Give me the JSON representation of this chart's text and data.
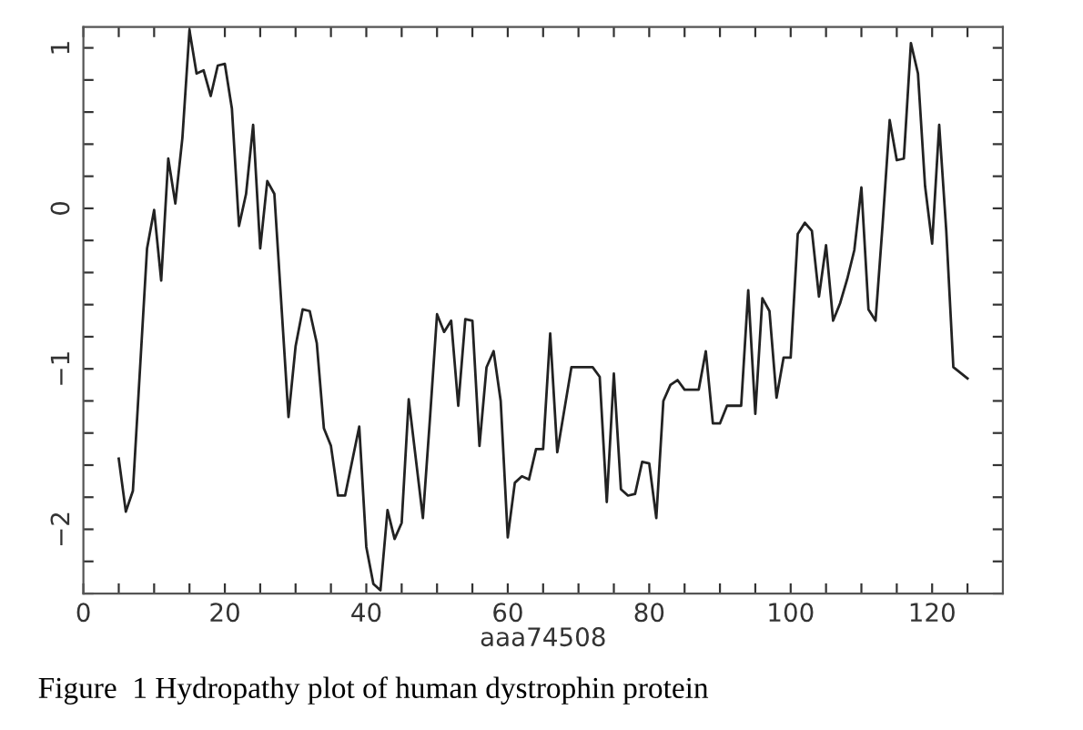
{
  "chart_data": {
    "type": "line",
    "xlabel": "aaa74508",
    "annotations": [
      "Figure  1 Hydropathy plot of human dystrophin protein"
    ],
    "x": [
      5,
      6,
      7,
      9,
      10,
      11,
      12,
      13,
      14,
      15,
      16,
      17,
      18,
      19,
      20,
      21,
      22,
      23,
      24,
      25,
      26,
      27,
      29,
      30,
      31,
      32,
      33,
      34,
      35,
      36,
      37,
      39,
      40,
      41,
      42,
      43,
      44,
      45,
      46,
      48,
      49,
      50,
      51,
      52,
      53,
      54,
      55,
      56,
      57,
      58,
      59,
      60,
      61,
      62,
      63,
      64,
      65,
      66,
      67,
      69,
      72,
      73,
      74,
      75,
      76,
      77,
      78,
      79,
      80,
      81,
      82,
      83,
      84,
      85,
      87,
      88,
      89,
      90,
      91,
      93,
      94,
      95,
      96,
      97,
      98,
      99,
      100,
      101,
      102,
      103,
      104,
      105,
      106,
      107,
      108,
      109,
      110,
      111,
      112,
      113,
      114,
      115,
      116,
      117,
      118,
      119,
      120,
      121,
      122,
      123,
      125
    ],
    "series": [
      {
        "color": "#222222",
        "values": [
          -1.56,
          -1.89,
          -1.76,
          -0.25,
          -0.01,
          -0.45,
          0.31,
          0.03,
          0.44,
          1.11,
          0.84,
          0.86,
          0.7,
          0.89,
          0.9,
          0.62,
          -0.11,
          0.09,
          0.52,
          -0.25,
          0.17,
          0.09,
          -1.3,
          -0.86,
          -0.63,
          -0.64,
          -0.84,
          -1.37,
          -1.48,
          -1.79,
          -1.79,
          -1.36,
          -2.11,
          -2.34,
          -2.38,
          -1.88,
          -2.06,
          -1.96,
          -1.19,
          -1.93,
          -1.31,
          -0.66,
          -0.77,
          -0.7,
          -1.23,
          -0.69,
          -0.7,
          -1.48,
          -0.99,
          -0.89,
          -1.2,
          -2.05,
          -1.71,
          -1.67,
          -1.69,
          -1.5,
          -1.5,
          -0.78,
          -1.52,
          -0.99,
          -0.99,
          -1.05,
          -1.83,
          -1.03,
          -1.75,
          -1.79,
          -1.78,
          -1.58,
          -1.59,
          -1.93,
          -1.2,
          -1.1,
          -1.07,
          -1.13,
          -1.13,
          -0.89,
          -1.34,
          -1.34,
          -1.23,
          -1.23,
          -0.51,
          -1.28,
          -0.56,
          -0.64,
          -1.18,
          -0.93,
          -0.93,
          -0.16,
          -0.09,
          -0.14,
          -0.55,
          -0.23,
          -0.7,
          -0.59,
          -0.44,
          -0.26,
          0.13,
          -0.63,
          -0.7,
          -0.1,
          0.55,
          0.3,
          0.31,
          1.03,
          0.84,
          0.14,
          -0.22,
          0.52,
          -0.14,
          -0.99,
          -1.06
        ]
      }
    ],
    "xlim": [
      0,
      130
    ],
    "xticks": [
      0,
      {
        "value": 5,
        "label": null
      },
      {
        "value": 10,
        "label": null
      },
      {
        "value": 15,
        "label": null
      },
      20,
      {
        "value": 25,
        "label": null
      },
      {
        "value": 30,
        "label": null
      },
      {
        "value": 35,
        "label": null
      },
      40,
      {
        "value": 45,
        "label": null
      },
      {
        "value": 50,
        "label": null
      },
      {
        "value": 55,
        "label": null
      },
      60,
      {
        "value": 65,
        "label": null
      },
      {
        "value": 70,
        "label": null
      },
      {
        "value": 75,
        "label": null
      },
      80,
      {
        "value": 85,
        "label": null
      },
      {
        "value": 90,
        "label": null
      },
      {
        "value": 95,
        "label": null
      },
      100,
      {
        "value": 105,
        "label": null
      },
      {
        "value": 110,
        "label": null
      },
      {
        "value": 115,
        "label": null
      },
      120,
      {
        "value": 125,
        "label": null
      }
    ],
    "ylim": [
      -2.4,
      1.13
    ],
    "yticks": [
      {
        "value": -2.4,
        "label": null
      },
      {
        "value": -2.2,
        "label": null
      },
      {
        "value": -2,
        "label": "−2"
      },
      {
        "value": -1.8,
        "label": null
      },
      {
        "value": -1.6,
        "label": null
      },
      {
        "value": -1.4,
        "label": null
      },
      {
        "value": -1.2,
        "label": null
      },
      {
        "value": -1,
        "label": "−1"
      },
      {
        "value": -0.8,
        "label": null
      },
      {
        "value": -0.6,
        "label": null
      },
      {
        "value": -0.4,
        "label": null
      },
      {
        "value": -0.2,
        "label": null
      },
      0,
      {
        "value": 0.2,
        "label": null
      },
      {
        "value": 0.4,
        "label": null
      },
      {
        "value": 0.6,
        "label": null
      },
      {
        "value": 0.8,
        "label": null
      },
      1
    ],
    "grid": false,
    "legend": false,
    "marker": "none",
    "line_style": "solid"
  }
}
